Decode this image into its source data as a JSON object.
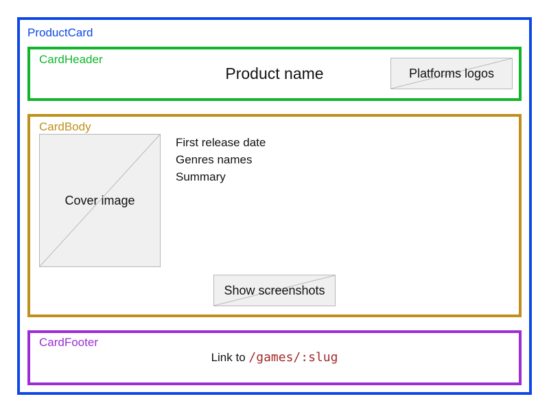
{
  "colors": {
    "product_card": "#0d47e8",
    "card_header": "#10b52a",
    "card_body": "#c0901c",
    "card_footer": "#9b2ed4",
    "code_text": "#a52a2a",
    "placeholder_fill": "#f0f0f0",
    "placeholder_border": "#b7b7b7"
  },
  "product_card": {
    "label": "ProductCard"
  },
  "card_header": {
    "label": "CardHeader",
    "title": "Product name",
    "platforms_placeholder": "Platforms logos"
  },
  "card_body": {
    "label": "CardBody",
    "cover_placeholder": "Cover image",
    "fields": [
      "First release date",
      "Genres names",
      "Summary"
    ],
    "screenshots_button": "Show screenshots"
  },
  "card_footer": {
    "label": "CardFooter",
    "link_prefix": "Link to",
    "link_path": "/games/:slug"
  }
}
